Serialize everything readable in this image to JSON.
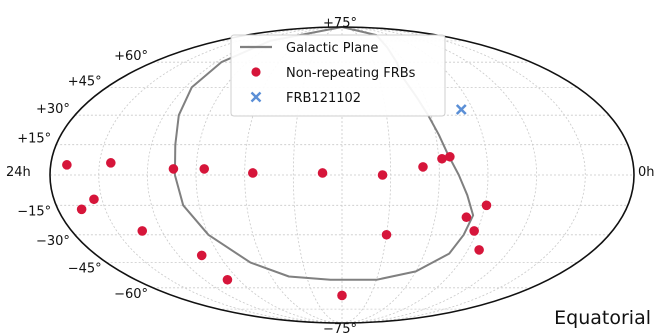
{
  "chart_data": {
    "type": "scatter",
    "projection": "aitoff/mollweide (equatorial coordinates)",
    "corner_label": "Equatorial",
    "ra_tick_labels": {
      "left": "24h",
      "right": "0h"
    },
    "dec_tick_labels": [
      {
        "dec": 75,
        "text": "+75°"
      },
      {
        "dec": 60,
        "text": "+60°"
      },
      {
        "dec": 45,
        "text": "+45°"
      },
      {
        "dec": 30,
        "text": "+30°"
      },
      {
        "dec": 15,
        "text": "+15°"
      },
      {
        "dec": -15,
        "text": "−15°"
      },
      {
        "dec": -30,
        "text": "−30°"
      },
      {
        "dec": -45,
        "text": "−45°"
      },
      {
        "dec": -60,
        "text": "−60°"
      },
      {
        "dec": -75,
        "text": "−75°"
      }
    ],
    "grid": true,
    "legend": {
      "placement": "top-center",
      "entries": [
        {
          "label": "Galactic Plane",
          "marker": "line",
          "color": "#808080"
        },
        {
          "label": "Non-repeating FRBs",
          "marker": "dot",
          "color": "#d6153a"
        },
        {
          "label": "FRB121102",
          "marker": "x",
          "color": "#5b8fd6"
        }
      ]
    },
    "series": [
      {
        "name": "Non-repeating FRBs",
        "color": "#d6153a",
        "points": [
          {
            "lon": 170,
            "lat": 5
          },
          {
            "lon": 143,
            "lat": 6
          },
          {
            "lon": 104,
            "lat": 3
          },
          {
            "lon": 85,
            "lat": 3
          },
          {
            "lon": 55,
            "lat": 1
          },
          {
            "lon": 12,
            "lat": 1
          },
          {
            "lon": -25,
            "lat": 0
          },
          {
            "lon": -50,
            "lat": 4
          },
          {
            "lon": -62,
            "lat": 8
          },
          {
            "lon": -67,
            "lat": 9
          },
          {
            "lon": 155,
            "lat": -12
          },
          {
            "lon": 165,
            "lat": -17
          },
          {
            "lon": 133,
            "lat": -28
          },
          {
            "lon": 103,
            "lat": -41
          },
          {
            "lon": 100,
            "lat": -55
          },
          {
            "lon": -30,
            "lat": -30
          },
          {
            "lon": -91,
            "lat": -15
          },
          {
            "lon": -80,
            "lat": -21
          },
          {
            "lon": -88,
            "lat": -28
          },
          {
            "lon": -98,
            "lat": -38
          },
          {
            "lon": 0,
            "lat": -65
          }
        ]
      },
      {
        "name": "FRB121102",
        "color": "#5b8fd6",
        "marker": "x",
        "points": [
          {
            "lon": -82,
            "lat": 33
          }
        ]
      }
    ],
    "galactic_plane": {
      "color": "#808080",
      "points": [
        [
          -75,
          90
        ],
        [
          -65,
          80
        ],
        [
          -55,
          70
        ],
        [
          -52,
          60
        ],
        [
          -50,
          50
        ],
        [
          -54,
          40
        ],
        [
          -58,
          30
        ],
        [
          -62,
          20
        ],
        [
          -66,
          10
        ],
        [
          -72,
          0
        ],
        [
          -78,
          -10
        ],
        [
          -84,
          -20
        ],
        [
          -82,
          -30
        ],
        [
          -78,
          -40
        ],
        [
          -60,
          -50
        ],
        [
          -30,
          -55
        ],
        [
          10,
          -55
        ],
        [
          45,
          -53
        ],
        [
          70,
          -45
        ],
        [
          90,
          -30
        ],
        [
          100,
          -15
        ],
        [
          103,
          0
        ],
        [
          105,
          15
        ],
        [
          110,
          30
        ],
        [
          115,
          45
        ],
        [
          115,
          60
        ],
        [
          105,
          75
        ],
        [
          80,
          90
        ]
      ]
    }
  }
}
